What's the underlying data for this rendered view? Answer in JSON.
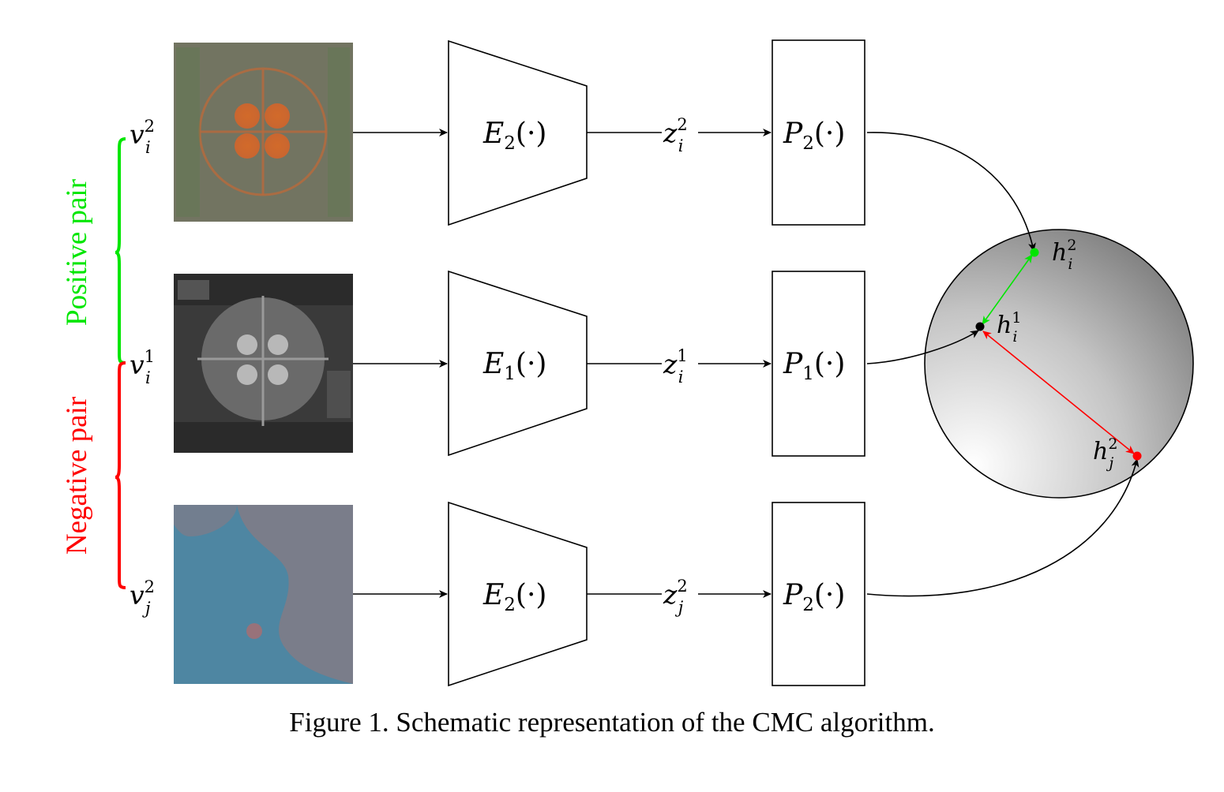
{
  "caption": "Figure 1. Schematic representation of the CMC algorithm.",
  "brackets": {
    "positive": {
      "label": "Positive pair",
      "color": "#00e600"
    },
    "negative": {
      "label": "Negative pair",
      "color": "#ff0000"
    }
  },
  "rows": [
    {
      "view": {
        "base": "v",
        "sub": "i",
        "sup": "2"
      },
      "image": "false-color aerial image of ball fields (orange/green)",
      "encoder": {
        "base": "E",
        "sub": "2",
        "arg": "(·)"
      },
      "latent": {
        "base": "z",
        "sub": "i",
        "sup": "2"
      },
      "projector": {
        "base": "P",
        "sub": "2",
        "arg": "(·)"
      }
    },
    {
      "view": {
        "base": "v",
        "sub": "i",
        "sup": "1"
      },
      "image": "grayscale aerial image of ball fields",
      "encoder": {
        "base": "E",
        "sub": "1",
        "arg": "(·)"
      },
      "latent": {
        "base": "z",
        "sub": "i",
        "sup": "1"
      },
      "projector": {
        "base": "P",
        "sub": "1",
        "arg": "(·)"
      }
    },
    {
      "view": {
        "base": "v",
        "sub": "j",
        "sup": "2"
      },
      "image": "false-color aerial image of shoreline (blue)",
      "encoder": {
        "base": "E",
        "sub": "2",
        "arg": "(·)"
      },
      "latent": {
        "base": "z",
        "sub": "j",
        "sup": "2"
      },
      "projector": {
        "base": "P",
        "sub": "2",
        "arg": "(·)"
      }
    }
  ],
  "embedding_points": [
    {
      "base": "h",
      "sub": "i",
      "sup": "2",
      "color": "#00e600"
    },
    {
      "base": "h",
      "sub": "i",
      "sup": "1",
      "color": "#000000"
    },
    {
      "base": "h",
      "sub": "j",
      "sup": "2",
      "color": "#ff0000"
    }
  ],
  "colors": {
    "positive": "#00e600",
    "negative": "#ff0000",
    "stroke": "#000000",
    "sphere_light": "#ffffff",
    "sphere_dark": "#7a7a7a"
  }
}
